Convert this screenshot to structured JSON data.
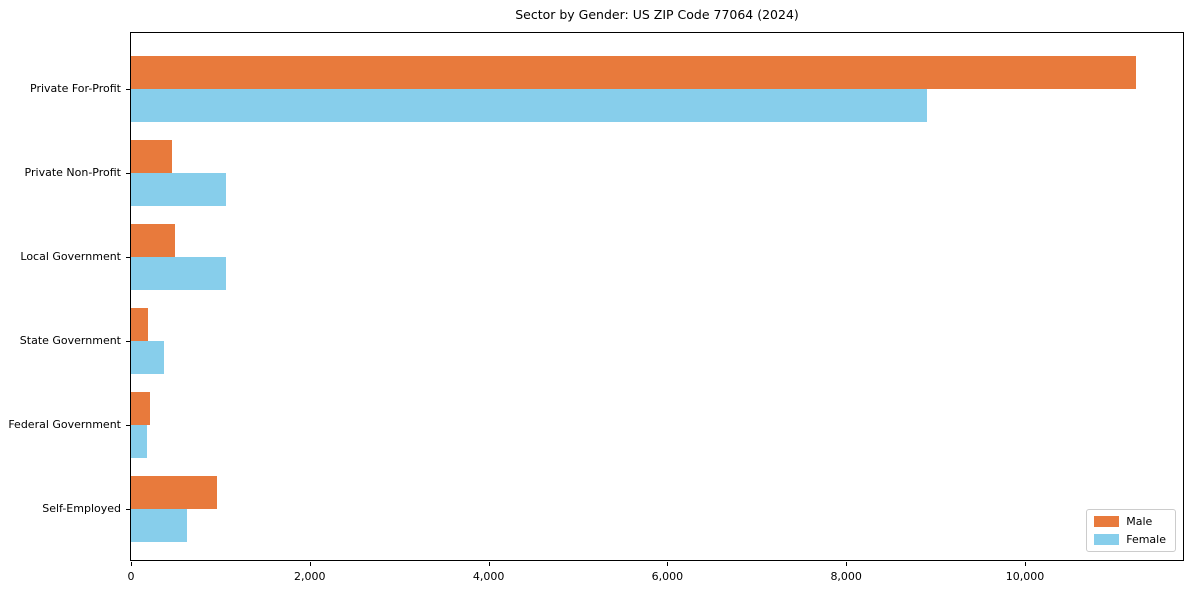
{
  "chart_data": {
    "type": "bar",
    "orientation": "horizontal",
    "title": "Sector by Gender: US ZIP Code 77064 (2024)",
    "categories": [
      "Private For-Profit",
      "Private Non-Profit",
      "Local Government",
      "State Government",
      "Federal Government",
      "Self-Employed"
    ],
    "series": [
      {
        "name": "Male",
        "color": "#e87a3c",
        "values": [
          11240,
          460,
          490,
          190,
          215,
          960
        ]
      },
      {
        "name": "Female",
        "color": "#87ceeb",
        "values": [
          8900,
          1060,
          1060,
          370,
          175,
          630
        ]
      }
    ],
    "xlabel": "",
    "ylabel": "",
    "xlim": [
      0,
      11790
    ],
    "x_ticks": {
      "values": [
        0,
        2000,
        4000,
        6000,
        8000,
        10000
      ],
      "labels": [
        "0",
        "2,000",
        "4,000",
        "6,000",
        "8,000",
        "10,000"
      ]
    },
    "grid": false,
    "legend": {
      "position": "lower right",
      "entries": [
        "Male",
        "Female"
      ]
    }
  },
  "colors": {
    "background": "#ffffff",
    "frame": "#000000",
    "legend_border": "#cccccc",
    "text": "#000000"
  }
}
